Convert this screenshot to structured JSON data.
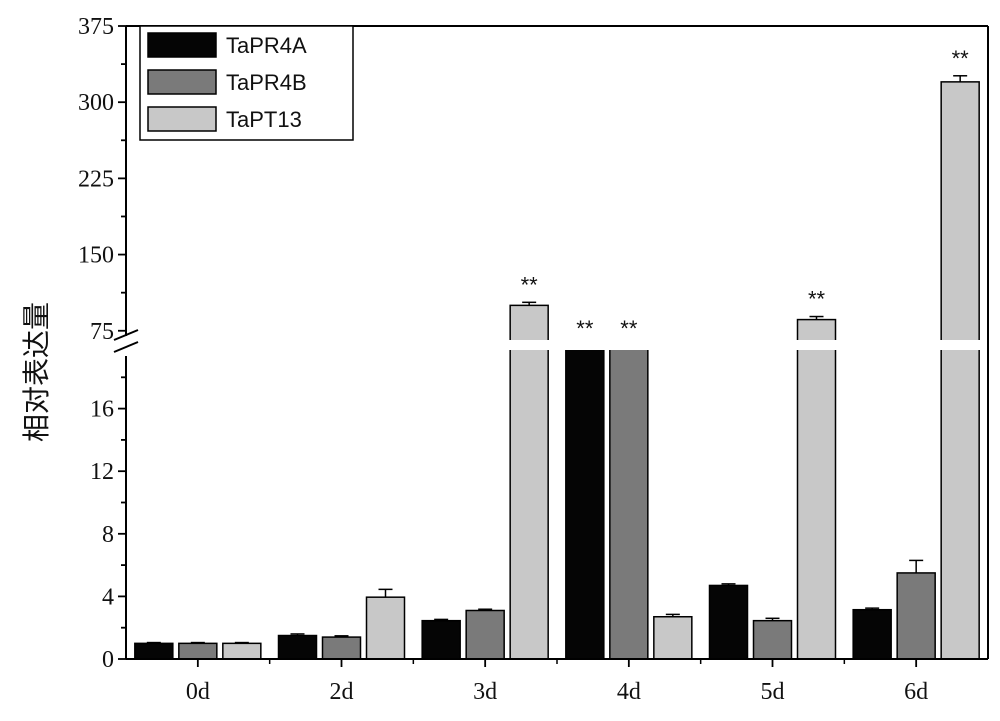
{
  "chart_data": {
    "type": "bar",
    "title": "",
    "xlabel": "",
    "ylabel": "相对表达量",
    "categories": [
      "0d",
      "2d",
      "3d",
      "4d",
      "5d",
      "6d"
    ],
    "axis_break": {
      "lower_range": [
        0,
        20
      ],
      "upper_range": [
        60,
        375
      ]
    },
    "lower_ticks": [
      "0",
      "4",
      "8",
      "12",
      "16"
    ],
    "upper_ticks": [
      "75",
      "150",
      "225",
      "300",
      "375"
    ],
    "legend": {
      "position": "top-left"
    },
    "series": [
      {
        "name": "TaPR4A",
        "color": "#050505",
        "values": [
          1.0,
          1.5,
          2.45,
          47,
          4.7,
          3.15
        ],
        "errors": [
          0.05,
          0.1,
          0.08,
          1.2,
          0.1,
          0.1
        ],
        "sig": [
          "",
          "",
          "",
          "**",
          "",
          ""
        ]
      },
      {
        "name": "TaPR4B",
        "color": "#7a7a7a",
        "values": [
          1.0,
          1.4,
          3.1,
          56,
          2.45,
          5.5
        ],
        "errors": [
          0.05,
          0.08,
          0.08,
          1.2,
          0.15,
          0.8
        ],
        "sig": [
          "",
          "",
          "",
          "**",
          "",
          ""
        ]
      },
      {
        "name": "TaPT13",
        "color": "#c8c8c8",
        "values": [
          1.0,
          3.95,
          100,
          2.7,
          86,
          320
        ],
        "errors": [
          0.05,
          0.5,
          3,
          0.15,
          3,
          6
        ],
        "sig": [
          "",
          "",
          "**",
          "",
          "**",
          "**"
        ]
      }
    ]
  }
}
